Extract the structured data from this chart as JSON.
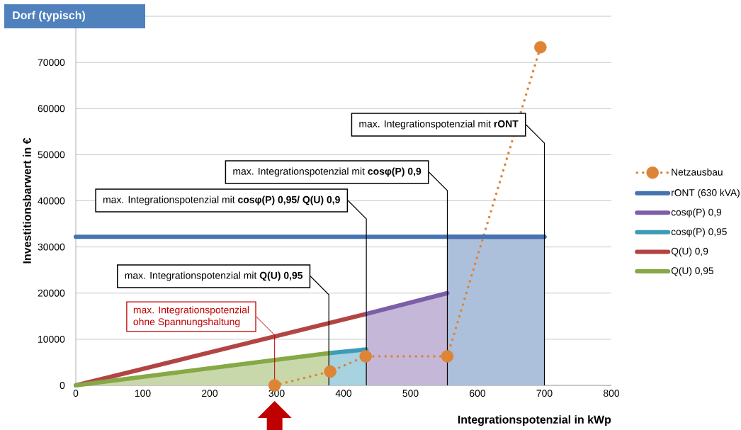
{
  "chart_data": {
    "type": "line",
    "title": "Dorf (typisch)",
    "xlabel": "Integrationspotenzial in kWp",
    "ylabel": "Investitionsbarwert in €",
    "xlim": [
      0,
      800
    ],
    "xticks": [
      0,
      100,
      200,
      300,
      400,
      500,
      600,
      700,
      800
    ],
    "ylim": [
      0,
      80000
    ],
    "yticks": [
      0,
      10000,
      20000,
      30000,
      40000,
      50000,
      60000,
      70000,
      {
        "value": 80000,
        "label": null
      }
    ],
    "grid": "y",
    "legend": "right",
    "series": [
      {
        "type": "area",
        "color": "#4672b0",
        "x": [
          555,
          700
        ],
        "values": [
          32200,
          32200
        ]
      },
      {
        "name": "Netzausbau",
        "color": "#dd8437",
        "marker": "circle",
        "line_style": "dotted",
        "x": [
          297,
          380,
          433,
          555,
          694
        ],
        "values": [
          0,
          3000,
          6300,
          6300,
          73300
        ]
      },
      {
        "name": "rONT (630 kVA)",
        "color": "#4672b0",
        "x": [
          0,
          700
        ],
        "values": [
          32200,
          32200
        ]
      },
      {
        "name": "cosφ(P) 0,9",
        "type": "area",
        "color": "#7b5ea7",
        "x": [
          434,
          555
        ],
        "values": [
          15500,
          20000
        ]
      },
      {
        "name": "cosφ(P) 0,95",
        "type": "area",
        "color": "#3c9bb8",
        "x": [
          378,
          434
        ],
        "values": [
          7000,
          7800
        ]
      },
      {
        "name": "Q(U) 0,9",
        "color": "#b24543",
        "x": [
          0,
          434
        ],
        "values": [
          0,
          15500
        ]
      },
      {
        "name": "Q(U) 0,95",
        "type": "area",
        "color": "#86a845",
        "x": [
          0,
          378
        ],
        "values": [
          0,
          7000
        ]
      }
    ],
    "annotations": [
      {
        "text": "max. Integrationspotenzial mit **rONT**",
        "x": 700,
        "y": 0
      },
      {
        "text": "max. Integrationspotenzial mit **cosφ(P) 0,9**",
        "x": 555,
        "y": 0
      },
      {
        "text": "max. Integrationspotenzial mit **cosφ(P) 0,95/ Q(U) 0,9**",
        "x": 434,
        "y": 0
      },
      {
        "text": "max. Integrationspotenzial mit **Q(U) 0,95**",
        "x": 378,
        "y": 0
      },
      {
        "text": "max. Integrationspotenzial ohne Spannungshaltung",
        "x": 297,
        "y": 0
      }
    ]
  }
}
